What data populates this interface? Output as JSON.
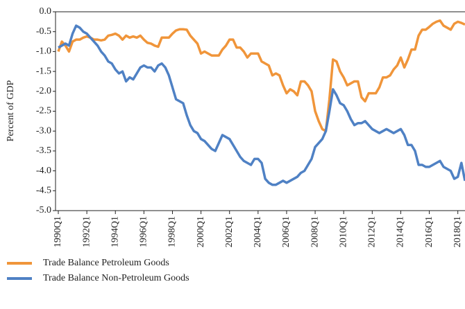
{
  "chart_data": {
    "type": "line",
    "y_label": "Percent of GDP",
    "categories": [
      "1990Q1",
      null,
      null,
      null,
      null,
      null,
      null,
      null,
      "1992Q1",
      null,
      null,
      null,
      null,
      null,
      null,
      null,
      "1994Q1",
      null,
      null,
      null,
      null,
      null,
      null,
      null,
      "1996Q1",
      null,
      null,
      null,
      null,
      null,
      null,
      null,
      "1998Q1",
      null,
      null,
      null,
      null,
      null,
      null,
      null,
      "2000Q1",
      null,
      null,
      null,
      null,
      null,
      null,
      null,
      "2002Q1",
      null,
      null,
      null,
      null,
      null,
      null,
      null,
      "2004Q1",
      null,
      null,
      null,
      null,
      null,
      null,
      null,
      "2006Q1",
      null,
      null,
      null,
      null,
      null,
      null,
      null,
      "2008Q1",
      null,
      null,
      null,
      null,
      null,
      null,
      null,
      "2010Q1",
      null,
      null,
      null,
      null,
      null,
      null,
      null,
      "2012Q1",
      null,
      null,
      null,
      null,
      null,
      null,
      null,
      "2014Q1",
      null,
      null,
      null,
      null,
      null,
      null,
      null,
      "2016Q1",
      null,
      null,
      null,
      null,
      null,
      null,
      null,
      "2018Q1",
      null,
      null
    ],
    "series": [
      {
        "name": "Trade Balance Petroleum Goods",
        "color": "#f0953a",
        "values": [
          -1.0,
          -0.75,
          -0.85,
          -1.0,
          -0.75,
          -0.7,
          -0.7,
          -0.65,
          -0.62,
          -0.65,
          -0.7,
          -0.7,
          -0.72,
          -0.7,
          -0.6,
          -0.58,
          -0.55,
          -0.6,
          -0.7,
          -0.6,
          -0.65,
          -0.62,
          -0.65,
          -0.6,
          -0.7,
          -0.78,
          -0.8,
          -0.85,
          -0.88,
          -0.65,
          -0.65,
          -0.65,
          -0.55,
          -0.47,
          -0.44,
          -0.44,
          -0.45,
          -0.6,
          -0.7,
          -0.8,
          -1.05,
          -1.0,
          -1.05,
          -1.1,
          -1.1,
          -1.1,
          -0.95,
          -0.85,
          -0.7,
          -0.7,
          -0.9,
          -0.9,
          -1.0,
          -1.15,
          -1.05,
          -1.05,
          -1.05,
          -1.25,
          -1.3,
          -1.35,
          -1.6,
          -1.55,
          -1.6,
          -1.85,
          -2.05,
          -1.95,
          -2.0,
          -2.1,
          -1.75,
          -1.75,
          -1.85,
          -2.0,
          -2.5,
          -2.75,
          -2.95,
          -3.0,
          -2.2,
          -1.2,
          -1.25,
          -1.5,
          -1.65,
          -1.85,
          -1.8,
          -1.75,
          -1.75,
          -2.15,
          -2.25,
          -2.05,
          -2.05,
          -2.05,
          -1.9,
          -1.65,
          -1.65,
          -1.6,
          -1.45,
          -1.35,
          -1.15,
          -1.4,
          -1.2,
          -0.95,
          -0.95,
          -0.6,
          -0.45,
          -0.45,
          -0.38,
          -0.3,
          -0.25,
          -0.22,
          -0.35,
          -0.4,
          -0.45,
          -0.3,
          -0.25,
          -0.28,
          -0.32
        ]
      },
      {
        "name": "Trade Balance Non-Petroleum Goods",
        "color": "#4f81c4",
        "values": [
          -0.9,
          -0.85,
          -0.8,
          -0.85,
          -0.55,
          -0.35,
          -0.4,
          -0.5,
          -0.55,
          -0.65,
          -0.75,
          -0.85,
          -1.0,
          -1.1,
          -1.25,
          -1.3,
          -1.45,
          -1.55,
          -1.5,
          -1.75,
          -1.65,
          -1.7,
          -1.55,
          -1.4,
          -1.35,
          -1.4,
          -1.4,
          -1.5,
          -1.35,
          -1.3,
          -1.4,
          -1.6,
          -1.9,
          -2.2,
          -2.25,
          -2.3,
          -2.6,
          -2.85,
          -3.0,
          -3.05,
          -3.2,
          -3.25,
          -3.35,
          -3.45,
          -3.5,
          -3.3,
          -3.1,
          -3.15,
          -3.2,
          -3.35,
          -3.5,
          -3.65,
          -3.75,
          -3.8,
          -3.85,
          -3.7,
          -3.7,
          -3.8,
          -4.2,
          -4.3,
          -4.35,
          -4.35,
          -4.3,
          -4.25,
          -4.3,
          -4.25,
          -4.2,
          -4.15,
          -4.05,
          -4.0,
          -3.85,
          -3.7,
          -3.4,
          -3.3,
          -3.2,
          -3.0,
          -2.5,
          -1.95,
          -2.1,
          -2.3,
          -2.35,
          -2.5,
          -2.7,
          -2.85,
          -2.8,
          -2.8,
          -2.75,
          -2.85,
          -2.95,
          -3.0,
          -3.05,
          -3.0,
          -2.95,
          -3.0,
          -3.05,
          -3.0,
          -2.95,
          -3.1,
          -3.35,
          -3.35,
          -3.5,
          -3.85,
          -3.85,
          -3.9,
          -3.9,
          -3.85,
          -3.8,
          -3.75,
          -3.9,
          -3.95,
          -4.0,
          -4.2,
          -4.15,
          -3.8,
          -4.25
        ]
      }
    ],
    "ylim": [
      -5,
      0
    ],
    "yticks": [
      {
        "value": 0,
        "label": "0.0"
      },
      -0.5,
      {
        "value": -1,
        "label": "-1.0"
      },
      -1.5,
      {
        "value": -2,
        "label": "-2.0"
      },
      -2.5,
      {
        "value": -3,
        "label": "-3.0"
      },
      -3.5,
      {
        "value": -4,
        "label": "-4.0"
      },
      -4.5,
      {
        "value": -5,
        "label": "-5.0"
      }
    ]
  }
}
